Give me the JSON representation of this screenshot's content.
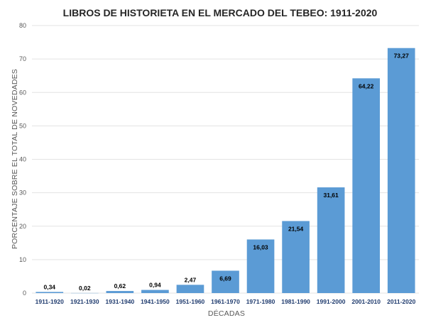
{
  "chart_data": {
    "type": "bar",
    "title": "LIBROS DE HISTORIETA EN EL MERCADO DEL TEBEO: 1911-2020",
    "xlabel": "DÉCADAS",
    "ylabel": "PORCENTAJE SOBRE EL TOTAL DE NOVEDADES",
    "ylim": [
      0,
      80
    ],
    "yticks": [
      0,
      10,
      20,
      30,
      40,
      50,
      60,
      70,
      80
    ],
    "grid": true,
    "legend": "none",
    "bar_color": "#5b9bd5",
    "categories": [
      "1911-1920",
      "1921-1930",
      "1931-1940",
      "1941-1950",
      "1951-1960",
      "1961-1970",
      "1971-1980",
      "1981-1990",
      "1991-2000",
      "2001-2010",
      "2011-2020"
    ],
    "values": [
      0.34,
      0.02,
      0.62,
      0.94,
      2.47,
      6.69,
      16.03,
      21.54,
      31.61,
      64.22,
      73.27
    ],
    "data_labels": [
      "0,34",
      "0,02",
      "0,62",
      "0,94",
      "2,47",
      "6,69",
      "16,03",
      "21,54",
      "31,61",
      "64,22",
      "73,27"
    ]
  }
}
